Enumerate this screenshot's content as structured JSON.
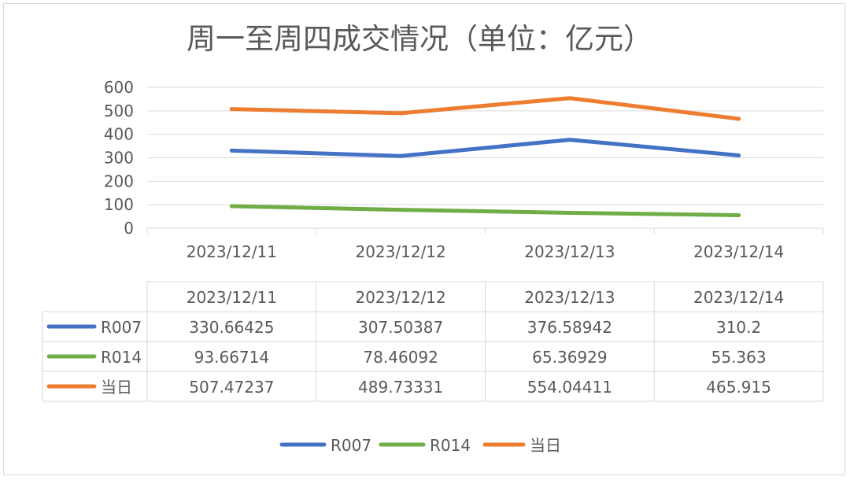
{
  "chart_data": {
    "type": "line",
    "title": "周一至周四成交情况（单位：亿元）",
    "categories": [
      "2023/12/11",
      "2023/12/12",
      "2023/12/13",
      "2023/12/14"
    ],
    "ylim": [
      0,
      600
    ],
    "yticks": [
      "0",
      "100",
      "200",
      "300",
      "400",
      "500",
      "600"
    ],
    "grid": true,
    "legend_position": "bottom",
    "data_table": true,
    "series": [
      {
        "name": "R007",
        "color": "#4472C4",
        "values": [
          330.66425,
          307.50387,
          376.58942,
          310.2
        ],
        "labels": [
          "330.66425",
          "307.50387",
          "376.58942",
          "310.2"
        ]
      },
      {
        "name": "R014",
        "color": "#70AD47",
        "values": [
          93.66714,
          78.46092,
          65.36929,
          55.363
        ],
        "labels": [
          "93.66714",
          "78.46092",
          "65.36929",
          "55.363"
        ]
      },
      {
        "name": "当日",
        "color": "#ED7D31",
        "values": [
          507.47237,
          489.73331,
          554.04411,
          465.915
        ],
        "labels": [
          "507.47237",
          "489.73331",
          "554.04411",
          "465.915"
        ]
      }
    ]
  }
}
